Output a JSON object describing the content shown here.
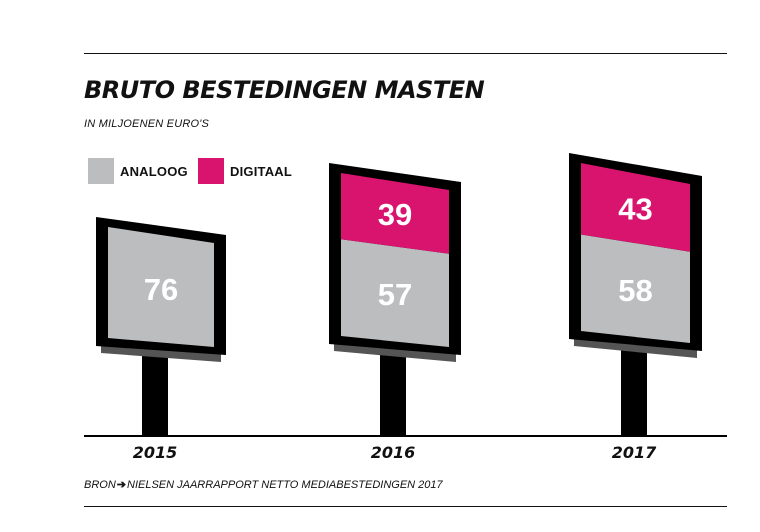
{
  "title": "BRUTO BESTEDINGEN MASTEN",
  "subtitle": "IN MILJOENEN EURO'S",
  "source": {
    "label": "BRON",
    "arrow": "➔",
    "text": "NIELSEN JAARRAPPORT NETTO MEDIABESTEDINGEN 2017"
  },
  "colors": {
    "analoog": "#bcbdbf",
    "digitaal": "#d9146f",
    "frame": "#000000"
  },
  "chart_data": {
    "type": "bar",
    "stacked": true,
    "title": "BRUTO BESTEDINGEN MASTEN",
    "subtitle": "IN MILJOENEN EURO'S",
    "categories": [
      "2015",
      "2016",
      "2017"
    ],
    "series": [
      {
        "name": "ANALOOG",
        "values": [
          76,
          57,
          58
        ]
      },
      {
        "name": "DIGITAAL",
        "values": [
          0,
          39,
          43
        ]
      }
    ],
    "legend_placement": "top-left",
    "grid": false
  }
}
